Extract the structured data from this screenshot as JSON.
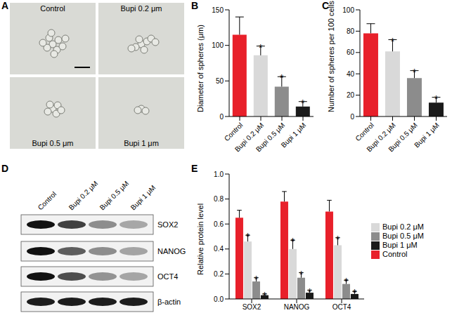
{
  "chart_data": [
    {
      "type": "bar",
      "title": "B",
      "y_label": "Diameter of spheres (μm)",
      "categories": [
        "Control",
        "Bupi 0.2 μM",
        "Bupi 0.5 μM",
        "Bupi 1 μM"
      ],
      "values": [
        115,
        86,
        42,
        14
      ],
      "errors": [
        25,
        13,
        14,
        7
      ],
      "annotations": [
        null,
        "*",
        "*",
        "*"
      ],
      "colors": [
        "#e8202a",
        "#d9d9d9",
        "#8c8c8c",
        "#1a1a1a"
      ],
      "ylim": [
        0,
        150
      ],
      "yticks": [
        0,
        50,
        100,
        150
      ]
    },
    {
      "type": "bar",
      "title": "C",
      "y_label": "Number of spheres per 100 cells",
      "categories": [
        "Control",
        "Bupi 0.2 μM",
        "Bupi 0.5 μM",
        "Bupi 1 μM"
      ],
      "values": [
        78,
        61,
        36,
        13
      ],
      "errors": [
        9,
        11,
        7,
        5
      ],
      "annotations": [
        null,
        "*",
        "*",
        "*"
      ],
      "colors": [
        "#e8202a",
        "#d9d9d9",
        "#8c8c8c",
        "#1a1a1a"
      ],
      "ylim": [
        0,
        100
      ],
      "yticks": [
        0,
        20,
        40,
        60,
        80,
        100
      ]
    },
    {
      "type": "bar",
      "title": "E",
      "y_label": "Relative protein level",
      "categories": [
        "SOX2",
        "NANOG",
        "OCT4"
      ],
      "legend": "right",
      "series": [
        {
          "name": "Control",
          "color": "#e8202a",
          "values": [
            0.65,
            0.78,
            0.7
          ],
          "errors": [
            0.06,
            0.08,
            0.09
          ],
          "annotations": [
            null,
            null,
            null
          ]
        },
        {
          "name": "Bupi 0.2 μM",
          "color": "#d9d9d9",
          "values": [
            0.46,
            0.4,
            0.43
          ],
          "errors": [
            0.05,
            0.07,
            0.06
          ],
          "annotations": [
            "*",
            "*",
            "*"
          ]
        },
        {
          "name": "Bupi 0.5 μM",
          "color": "#8c8c8c",
          "values": [
            0.14,
            0.17,
            0.12
          ],
          "errors": [
            0.03,
            0.04,
            0.03
          ],
          "annotations": [
            "*",
            "*",
            "*"
          ]
        },
        {
          "name": "Bupi 1 μM",
          "color": "#1a1a1a",
          "values": [
            0.03,
            0.05,
            0.04
          ],
          "errors": [
            0.01,
            0.02,
            0.02
          ],
          "annotations": [
            "*",
            "*",
            "*"
          ]
        }
      ],
      "ylim": [
        0,
        1
      ],
      "yticks": [
        {
          "value": 0,
          "label": "0.0"
        },
        {
          "value": 0.2,
          "label": "0.2"
        },
        {
          "value": 0.4,
          "label": "0.4"
        },
        {
          "value": 0.6,
          "label": "0.6"
        },
        {
          "value": 0.8,
          "label": "0.8"
        },
        {
          "value": 1,
          "label": "1.0"
        }
      ]
    }
  ],
  "images": {
    "title": "A",
    "labels": [
      "Control",
      "Bupi 0.2 μm",
      "Bupi 0.5 μm",
      "Bupi 1 μm"
    ]
  },
  "blot": {
    "title": "D",
    "lanes": [
      "Control",
      "Bupi 0.2 μM",
      "Bupi 0.5 μM",
      "Bupi 1 μM"
    ],
    "proteins": [
      "SOX2",
      "NANOG",
      "OCT4",
      "β-actin"
    ]
  }
}
